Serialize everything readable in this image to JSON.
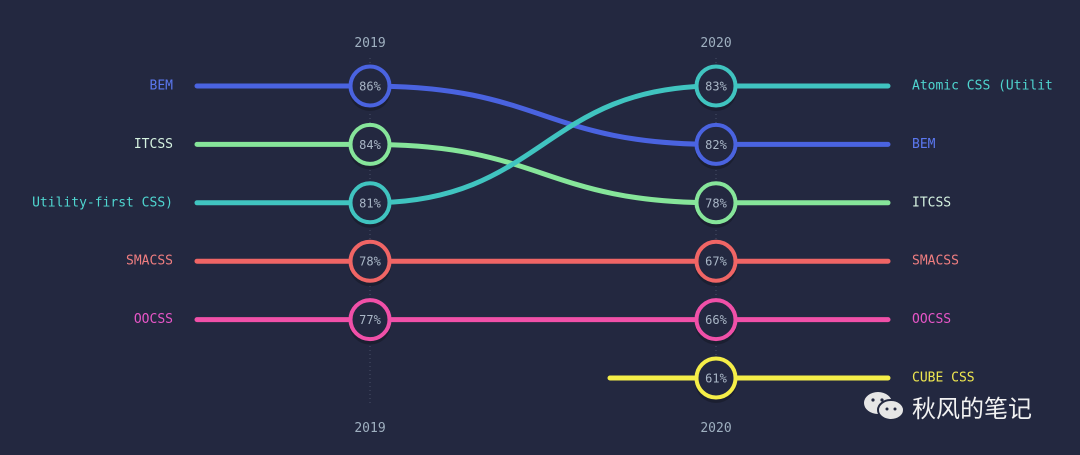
{
  "chart_data": {
    "type": "bump",
    "years": [
      "2019",
      "2020"
    ],
    "series": [
      {
        "name": "BEM",
        "label_2020": "BEM",
        "ranks": [
          1,
          2
        ],
        "values": [
          "86%",
          "82%"
        ],
        "color": "#4a63e0",
        "text_color": "#5b78f0"
      },
      {
        "name": "ITCSS",
        "label_2020": "ITCSS",
        "ranks": [
          2,
          3
        ],
        "values": [
          "84%",
          "78%"
        ],
        "color": "#86e59a",
        "text_color": "#d5f2e0"
      },
      {
        "name": "Utility-first CSS)",
        "label_2020": "Atomic CSS (Utilit",
        "ranks": [
          3,
          1
        ],
        "values": [
          "81%",
          "83%"
        ],
        "color": "#40c4c0",
        "text_color": "#4fd6d0"
      },
      {
        "name": "SMACSS",
        "label_2020": "SMACSS",
        "ranks": [
          4,
          4
        ],
        "values": [
          "78%",
          "67%"
        ],
        "color": "#f06565",
        "text_color": "#f07e80"
      },
      {
        "name": "OOCSS",
        "label_2020": "OOCSS",
        "ranks": [
          5,
          5
        ],
        "values": [
          "77%",
          "66%"
        ],
        "color": "#f050a8",
        "text_color": "#e856c8"
      },
      {
        "name": "CUBE CSS",
        "label_2020": "CUBE CSS",
        "ranks": [
          null,
          6
        ],
        "values": [
          null,
          "61%"
        ],
        "color": "#f5ee48",
        "text_color": "#f0e850"
      }
    ]
  },
  "watermark": {
    "icon": "wechat-icon",
    "text": "秋风的笔记"
  }
}
